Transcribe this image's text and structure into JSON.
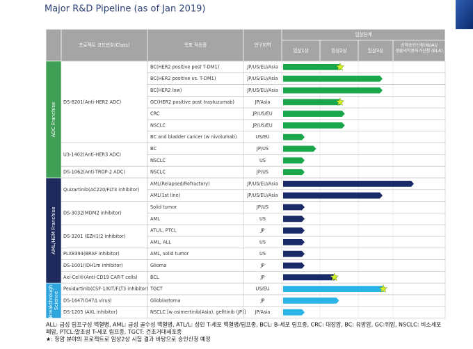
{
  "header": {
    "title": "Major R&D Pipeline (as of Jan 2019)"
  },
  "table": {
    "columns": [
      "프로젝트 코드번호(Class)",
      "목표 적응증",
      "연구지역"
    ],
    "phase_group": "임상단계",
    "phases": [
      "임상1상",
      "임상2상",
      "임상3상",
      "신약승인신청(NDA)/ 생물의약품허가신청 (BLA)"
    ]
  },
  "franchises": [
    {
      "name": "ADC Franchise",
      "color": "#3f9f55",
      "bar_color": "#1aa64a",
      "projects": [
        {
          "name": "DS-8201(Anti-HER2 ADC)",
          "rows": [
            {
              "indication": "BC(HER2 positive post T-DM1)",
              "region": "JP/US/EU/Asia",
              "stage": 1.6,
              "star": true
            },
            {
              "indication": "BC(HER2 positive vs. T-DM1)",
              "region": "JP/US/EU/Asia",
              "stage": 2.7,
              "star": false
            },
            {
              "indication": "BC(HER2 low)",
              "region": "JP/US/EU/Asia",
              "stage": 2.7,
              "star": false
            },
            {
              "indication": "GC(HER2 positive post trastuzumab)",
              "region": "JP/Asia",
              "stage": 1.6,
              "star": true
            },
            {
              "indication": "CRC",
              "region": "JP/US/EU",
              "stage": 1.65,
              "star": false
            },
            {
              "indication": "NSCLC",
              "region": "JP/US/EU",
              "stage": 1.65,
              "star": false
            },
            {
              "indication": "BC and bladder cancer (w nivolumab)",
              "region": "US/EU",
              "stage": 0.6,
              "star": false
            }
          ]
        },
        {
          "name": "U3-1402(Anti-HER3 ADC)",
          "rows": [
            {
              "indication": "BC",
              "region": "JP/US",
              "stage": 0.9,
              "star": false
            },
            {
              "indication": "NSCLC",
              "region": "US",
              "stage": 0.6,
              "star": false
            }
          ]
        },
        {
          "name": "DS-1062(Anti-TROP-2 ADC)",
          "rows": [
            {
              "indication": "NSCLC",
              "region": "JP/US",
              "stage": 0.6,
              "star": false
            }
          ]
        }
      ]
    },
    {
      "name": "AML/HEM Franchise",
      "color": "#1f2a5c",
      "bar_color": "#1a2a68",
      "projects": [
        {
          "name": "Quizartinib(AC220/FLT3 inhibitor)",
          "rows": [
            {
              "indication": "AML(Relapsed/Refractory)",
              "region": "JP/US/EU/Asia",
              "stage": 3.4,
              "star": false
            },
            {
              "indication": "AML(1st line)",
              "region": "JP/US/EU/Asia",
              "stage": 2.7,
              "star": false
            }
          ]
        },
        {
          "name": "DS-3032(MDM2 inhibitor)",
          "rows": [
            {
              "indication": "Solid tumor",
              "region": "JP/US",
              "stage": 0.6,
              "star": false
            },
            {
              "indication": "AML",
              "region": "US",
              "stage": 0.6,
              "star": false
            }
          ]
        },
        {
          "name": "DS-3201 (EZH1/2 inhibitor)",
          "rows": [
            {
              "indication": "ATL/L, PTCL",
              "region": "JP",
              "stage": 0.6,
              "star": false
            },
            {
              "indication": "AML, ALL",
              "region": "US",
              "stage": 0.6,
              "star": false
            }
          ]
        },
        {
          "name": "PLX8394(BRAF inhibitor)",
          "rows": [
            {
              "indication": "AML, solid tumor",
              "region": "US",
              "stage": 0.6,
              "star": false
            }
          ]
        },
        {
          "name": "DS-1001(IDH1m inhibitor)",
          "rows": [
            {
              "indication": "Glioma",
              "region": "JP",
              "stage": 0.6,
              "star": false
            }
          ]
        },
        {
          "name": "Axi-Cel®(Anti-CD19 CAR-T cells)",
          "rows": [
            {
              "indication": "BCL",
              "region": "JP",
              "stage": 1.45,
              "star": true
            }
          ]
        }
      ]
    },
    {
      "name": "Breakthrough Science",
      "color": "#2ea6dd",
      "bar_color": "#29b3e6",
      "projects": [
        {
          "name": "Pexidartinib(CSF-1/KIT/FLT3 inhibitor)",
          "rows": [
            {
              "indication": "TGCT",
              "region": "US/EU",
              "stage": 2.8,
              "star": true
            }
          ]
        },
        {
          "name": "DS-1647(G47Δ virus)",
          "rows": [
            {
              "indication": "Glioblastoma",
              "region": "JP",
              "stage": 1.5,
              "star": false
            }
          ]
        },
        {
          "name": "DS-1205 (AXL inhibitor)",
          "rows": [
            {
              "indication": "NSCLC [w osimertinib(Asia), gefitinib (JP)]",
              "region": "JP/Asia",
              "stage": 0.6,
              "star": false
            }
          ]
        }
      ]
    }
  ],
  "footnotes": [
    "ALL: 급성 림프구성 백혈병, AML: 급성 골수성 백혈병, ATL/L: 성인 T-세포 백혈병/림프종, BCL: B-세포 림프종, CRC: 대장암, BC: 유방암, GC:위암, NSCLC: 비소세포",
    "폐암, PTCL:말초성 T-세포 림프종, TGCT: 건초거대세포종",
    "★: 항암 분야의 프로젝트로 임상2상 시험 결과 바탕으로 승인신청 예정"
  ]
}
